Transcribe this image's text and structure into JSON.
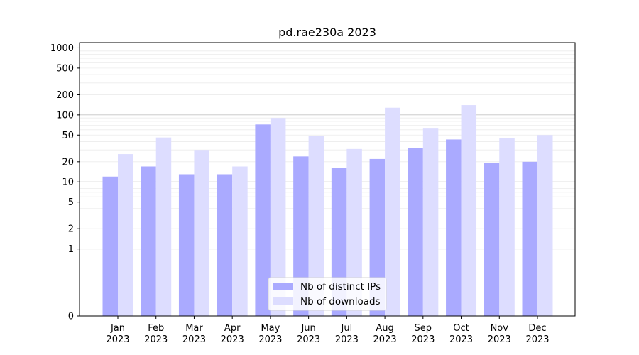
{
  "chart_data": {
    "type": "bar",
    "title": "pd.rae230a 2023",
    "xlabel": "",
    "ylabel": "",
    "y_scale": "symlog",
    "ylim": [
      0,
      1200
    ],
    "y_ticks": [
      0,
      1,
      2,
      5,
      10,
      20,
      50,
      100,
      200,
      500,
      1000
    ],
    "grid": true,
    "legend_position": "lower center",
    "categories": [
      [
        "Jan",
        "2023"
      ],
      [
        "Feb",
        "2023"
      ],
      [
        "Mar",
        "2023"
      ],
      [
        "Apr",
        "2023"
      ],
      [
        "May",
        "2023"
      ],
      [
        "Jun",
        "2023"
      ],
      [
        "Jul",
        "2023"
      ],
      [
        "Aug",
        "2023"
      ],
      [
        "Sep",
        "2023"
      ],
      [
        "Oct",
        "2023"
      ],
      [
        "Nov",
        "2023"
      ],
      [
        "Dec",
        "2023"
      ]
    ],
    "series": [
      {
        "name": "Nb of distinct IPs",
        "color": "#aaaaff",
        "values": [
          12,
          17,
          13,
          13,
          72,
          24,
          16,
          22,
          32,
          43,
          19,
          20
        ]
      },
      {
        "name": "Nb of downloads",
        "color": "#ddddff",
        "values": [
          26,
          46,
          30,
          17,
          90,
          48,
          31,
          128,
          64,
          140,
          45,
          50
        ]
      }
    ]
  }
}
